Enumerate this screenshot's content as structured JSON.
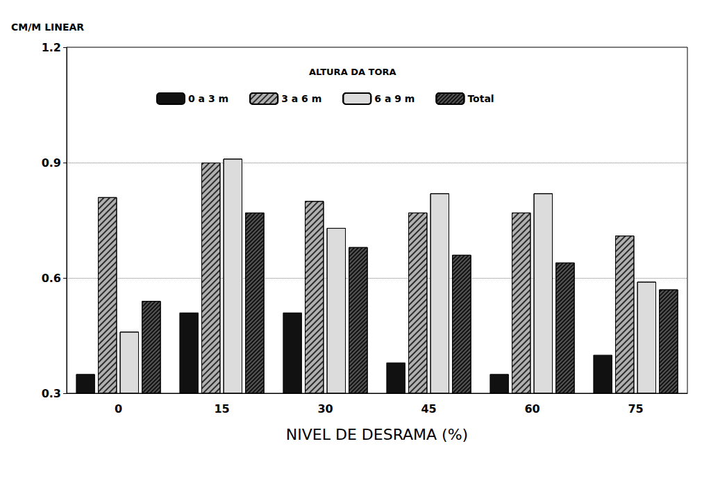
{
  "chart_data": {
    "type": "bar",
    "y_label": "CM/M LINEAR",
    "x_label": "NIVEL DE DESRAMA (%)",
    "legend_title": "ALTURA DA TORA",
    "categories": [
      "0",
      "15",
      "30",
      "45",
      "60",
      "75"
    ],
    "series": [
      {
        "name": "0 a 3 m",
        "color": "#111111",
        "values": [
          0.35,
          0.51,
          0.51,
          0.38,
          0.35,
          0.4
        ]
      },
      {
        "name": "3 a 6 m",
        "color": "#b0b0b0",
        "values": [
          0.81,
          0.9,
          0.8,
          0.77,
          0.77,
          0.71
        ]
      },
      {
        "name": "6 a 9 m",
        "color": "#dcdcdc",
        "values": [
          0.46,
          0.91,
          0.73,
          0.82,
          0.82,
          0.59
        ]
      },
      {
        "name": "Total",
        "color": "#555555",
        "values": [
          0.54,
          0.77,
          0.68,
          0.66,
          0.64,
          0.57
        ]
      }
    ],
    "ylim": [
      0.3,
      1.2
    ],
    "yticks": [
      0.3,
      0.6,
      0.9,
      1.2
    ],
    "grid": true,
    "legend": "top"
  }
}
